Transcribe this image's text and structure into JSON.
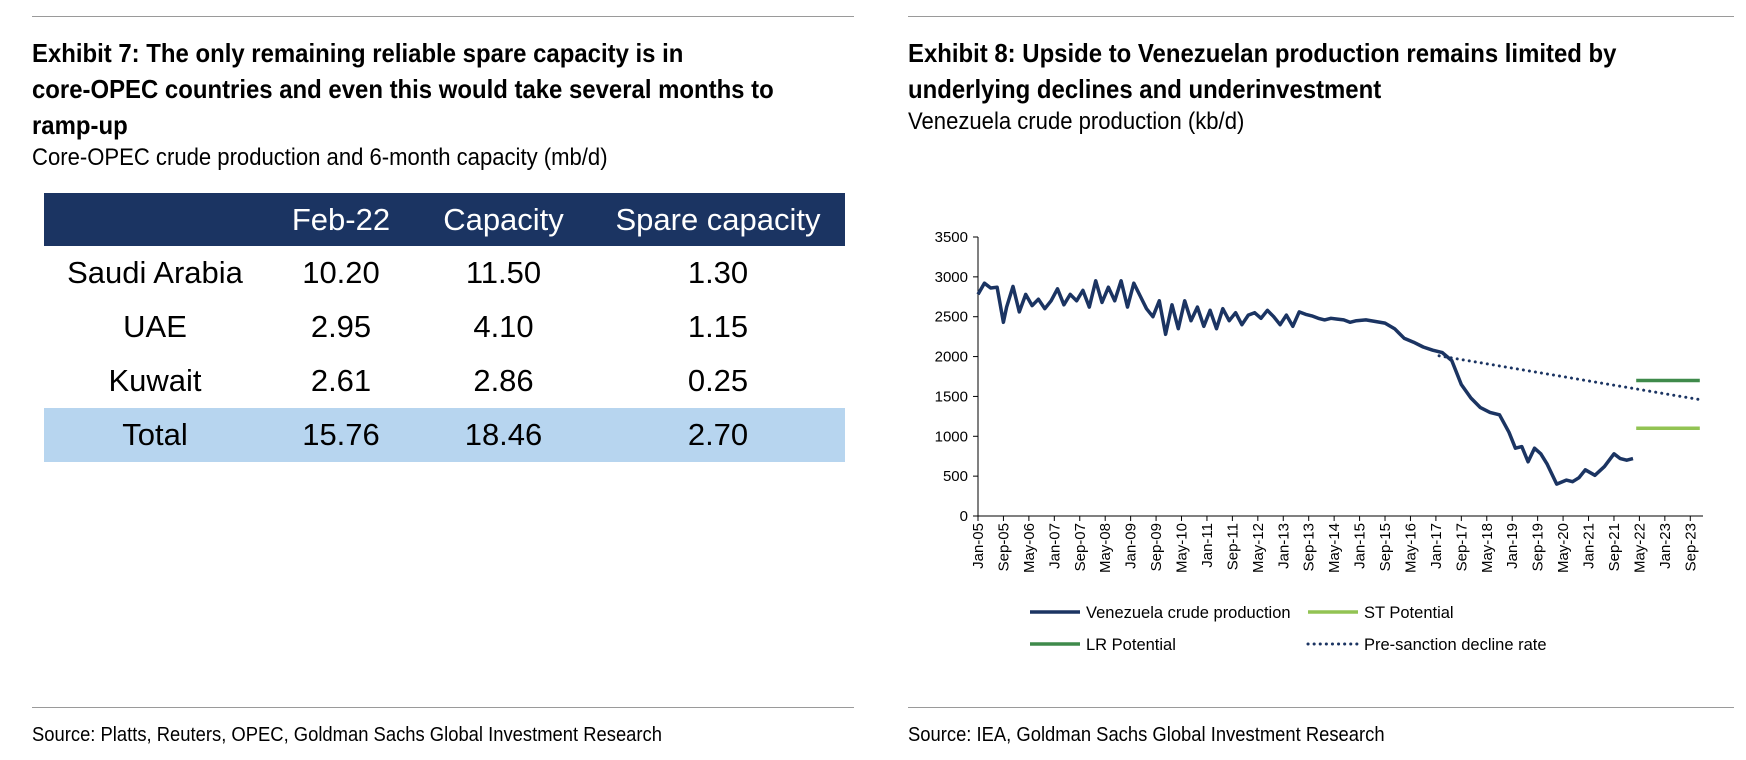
{
  "left": {
    "title_lines": [
      "Exhibit 7: The only remaining reliable spare capacity is in",
      "core-OPEC countries and even this would take several months to",
      "ramp-up"
    ],
    "subtitle": "Core-OPEC crude production and 6-month capacity (mb/d)",
    "table": {
      "headers": [
        "",
        "Feb-22",
        "Capacity",
        "Spare capacity"
      ],
      "rows": [
        [
          "Saudi Arabia",
          "10.20",
          "11.50",
          "1.30"
        ],
        [
          "UAE",
          "2.95",
          "4.10",
          "1.15"
        ],
        [
          "Kuwait",
          "2.61",
          "2.86",
          "0.25"
        ],
        [
          "Total",
          "15.76",
          "18.46",
          "2.70"
        ]
      ]
    },
    "source": "Source: Platts, Reuters, OPEC, Goldman Sachs Global Investment Research"
  },
  "right": {
    "title_lines": [
      "Exhibit 8: Upside to Venezuelan production remains limited by",
      "underlying declines and underinvestment"
    ],
    "subtitle": "Venezuela crude production (kb/d)",
    "source": "Source: IEA, Goldman Sachs Global Investment Research"
  },
  "chart_data": {
    "type": "line",
    "title": "Venezuela crude production (kb/d)",
    "xlabel": "",
    "ylabel": "",
    "ylim": [
      0,
      3500
    ],
    "yticks": [
      0,
      500,
      1000,
      1500,
      2000,
      2500,
      3000,
      3500
    ],
    "x_start": "2005-01",
    "x_end": "2023-12",
    "x_tick_labels": [
      "Jan-05",
      "Sep-05",
      "May-06",
      "Jan-07",
      "Sep-07",
      "May-08",
      "Jan-09",
      "Sep-09",
      "May-10",
      "Jan-11",
      "Sep-11",
      "May-12",
      "Jan-13",
      "Sep-13",
      "May-14",
      "Jan-15",
      "Sep-15",
      "May-16",
      "Jan-17",
      "Sep-17",
      "May-18",
      "Jan-19",
      "Sep-19",
      "May-20",
      "Jan-21",
      "Sep-21",
      "May-22",
      "Jan-23",
      "Sep-23"
    ],
    "grid": false,
    "legend_position": "bottom",
    "colors": {
      "production": "#1b3462",
      "st_potential": "#92c353",
      "lr_potential": "#3f8a4b",
      "pre_sanction": "#1b3462"
    },
    "series": [
      {
        "name": "Venezuela crude production",
        "style": "solid",
        "x": [
          "2005-01",
          "2005-03",
          "2005-05",
          "2005-07",
          "2005-09",
          "2005-10",
          "2005-12",
          "2006-02",
          "2006-04",
          "2006-06",
          "2006-08",
          "2006-10",
          "2006-12",
          "2007-02",
          "2007-04",
          "2007-06",
          "2007-08",
          "2007-10",
          "2007-12",
          "2008-02",
          "2008-04",
          "2008-06",
          "2008-08",
          "2008-10",
          "2008-12",
          "2009-02",
          "2009-04",
          "2009-06",
          "2009-08",
          "2009-10",
          "2009-12",
          "2010-02",
          "2010-04",
          "2010-06",
          "2010-08",
          "2010-10",
          "2010-12",
          "2011-02",
          "2011-04",
          "2011-06",
          "2011-08",
          "2011-10",
          "2011-12",
          "2012-02",
          "2012-04",
          "2012-06",
          "2012-08",
          "2012-10",
          "2012-12",
          "2013-02",
          "2013-04",
          "2013-06",
          "2013-08",
          "2013-10",
          "2013-12",
          "2014-02",
          "2014-04",
          "2014-06",
          "2014-08",
          "2014-10",
          "2014-12",
          "2015-03",
          "2015-06",
          "2015-09",
          "2015-12",
          "2016-03",
          "2016-06",
          "2016-09",
          "2016-12",
          "2017-03",
          "2017-06",
          "2017-09",
          "2017-12",
          "2018-03",
          "2018-06",
          "2018-09",
          "2018-12",
          "2019-02",
          "2019-04",
          "2019-06",
          "2019-08",
          "2019-10",
          "2019-12",
          "2020-03",
          "2020-06",
          "2020-08",
          "2020-10",
          "2020-12",
          "2021-03",
          "2021-06",
          "2021-09",
          "2021-11",
          "2022-01",
          "2022-03"
        ],
        "values": [
          2780,
          2920,
          2860,
          2870,
          2430,
          2620,
          2880,
          2560,
          2780,
          2640,
          2720,
          2600,
          2700,
          2850,
          2650,
          2780,
          2700,
          2830,
          2620,
          2950,
          2680,
          2870,
          2700,
          2950,
          2620,
          2920,
          2760,
          2600,
          2500,
          2700,
          2280,
          2650,
          2350,
          2700,
          2450,
          2620,
          2380,
          2580,
          2350,
          2600,
          2450,
          2550,
          2400,
          2520,
          2550,
          2480,
          2580,
          2500,
          2400,
          2520,
          2380,
          2560,
          2530,
          2510,
          2480,
          2460,
          2480,
          2470,
          2460,
          2430,
          2450,
          2460,
          2440,
          2420,
          2350,
          2230,
          2180,
          2120,
          2080,
          2050,
          1950,
          1650,
          1480,
          1360,
          1300,
          1270,
          1050,
          850,
          870,
          680,
          850,
          780,
          650,
          400,
          450,
          430,
          480,
          580,
          510,
          620,
          780,
          720,
          700,
          720
        ]
      },
      {
        "name": "ST Potential",
        "style": "solid",
        "x": [
          "2022-04",
          "2023-12"
        ],
        "values": [
          1100,
          1100
        ]
      },
      {
        "name": "LR Potential",
        "style": "solid",
        "x": [
          "2022-04",
          "2023-12"
        ],
        "values": [
          1700,
          1700
        ]
      },
      {
        "name": "Pre-sanction decline rate",
        "style": "dotted",
        "x": [
          "2017-02",
          "2023-12"
        ],
        "values": [
          2010,
          1460
        ]
      }
    ]
  }
}
